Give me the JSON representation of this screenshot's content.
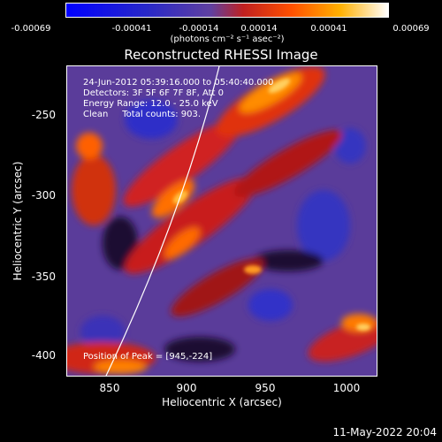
{
  "colorbar": {
    "ticks": [
      "-0.00069",
      "-0.00041",
      "-0.00014",
      "0.00014",
      "0.00041",
      "0.00069"
    ],
    "units": "(photons cm⁻² s⁻¹ asec⁻²)"
  },
  "title": "Reconstructed RHESSI Image",
  "info": {
    "line1": "24-Jun-2012 05:39:16.000 to 05:40:40.000",
    "line2": "Detectors: 3F 5F 6F 7F 8F, Att 0",
    "line3": "Energy Range: 12.0 - 25.0 keV",
    "line4": "Clean     Total counts: 903.",
    "peak": "Position of Peak = [945,-224]"
  },
  "y_axis": {
    "label": "Heliocentric Y (arcsec)",
    "ticks": [
      "-250",
      "-300",
      "-350",
      "-400"
    ]
  },
  "x_axis": {
    "label": "Heliocentric X (arcsec)",
    "ticks": [
      "850",
      "900",
      "950",
      "1000"
    ]
  },
  "datestamp": "11-May-2022 20:04"
}
